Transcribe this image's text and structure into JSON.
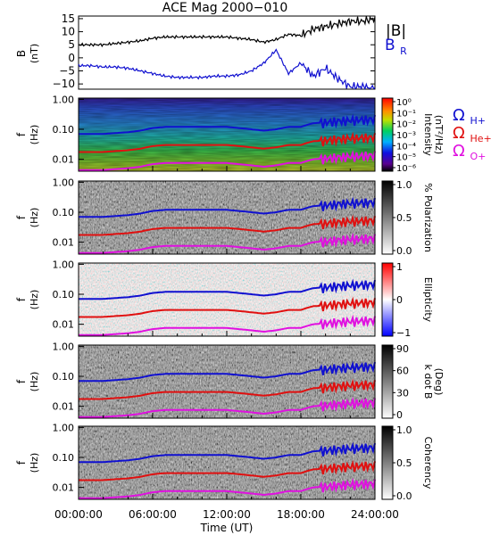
{
  "chart_data": [
    {
      "type": "line",
      "title": "ACE Mag 2000−010",
      "ylabel": "B",
      "yunit": "(nT)",
      "xlim": [
        0,
        24
      ],
      "ylim": [
        -12,
        16
      ],
      "yticks": [
        "15",
        "10",
        "5",
        "0",
        "−5",
        "−10"
      ],
      "ytick_values": [
        15,
        10,
        5,
        0,
        -5,
        -10
      ],
      "series": [
        {
          "name": "|B|",
          "color": "#000000",
          "x": [
            0,
            1,
            2,
            3,
            4,
            5,
            6,
            7,
            8,
            9,
            10,
            11,
            12,
            13,
            14,
            15,
            16,
            17,
            18,
            19,
            20,
            21,
            22,
            23,
            24
          ],
          "values": [
            5,
            5,
            5,
            5.5,
            6,
            6.5,
            7.5,
            8,
            8,
            8,
            8,
            8,
            8,
            7.5,
            7,
            6,
            7,
            9,
            8.5,
            11,
            12,
            13,
            14,
            14,
            15
          ]
        },
        {
          "name": "B",
          "name_sub": "R",
          "color": "#1010d0",
          "x": [
            0,
            1,
            2,
            3,
            4,
            5,
            6,
            7,
            8,
            9,
            10,
            11,
            12,
            13,
            14,
            15,
            16,
            17,
            18,
            19,
            20,
            21,
            22,
            23,
            24
          ],
          "values": [
            -3,
            -3,
            -3.5,
            -3.5,
            -4,
            -5,
            -6,
            -7,
            -7.5,
            -7.5,
            -7.5,
            -7,
            -7,
            -6.5,
            -5,
            -2,
            3,
            -6,
            -2,
            -7,
            -4,
            -8,
            -11,
            -11,
            -12
          ]
        }
      ]
    },
    {
      "type": "heatmap",
      "ylabel": "f",
      "yunit": "(Hz)",
      "yticks": [
        "1.00",
        "0.10",
        "0.01"
      ],
      "colorbar": {
        "label": "Intensity",
        "unit": "(nT²/Hz)",
        "ticks": [
          "10⁰",
          "10⁻¹",
          "10⁻²",
          "10⁻³",
          "10⁻⁴",
          "10⁻⁵",
          "10⁻⁶"
        ],
        "scale": "rainbow"
      },
      "legend": [
        {
          "symbol": "Ω",
          "sub": "H+",
          "color": "#1010d0"
        },
        {
          "symbol": "Ω",
          "sub": "He+",
          "color": "#e01010"
        },
        {
          "symbol": "Ω",
          "sub": "O+",
          "color": "#e010e0"
        }
      ]
    },
    {
      "type": "heatmap",
      "ylabel": "f",
      "yunit": "(Hz)",
      "yticks": [
        "1.00",
        "0.10",
        "0.01"
      ],
      "colorbar": {
        "label": "% Polarization",
        "ticks": [
          "1.0",
          "0.5",
          "0.0"
        ],
        "scale": "gray"
      }
    },
    {
      "type": "heatmap",
      "ylabel": "f",
      "yunit": "(Hz)",
      "yticks": [
        "1.00",
        "0.10",
        "0.01"
      ],
      "colorbar": {
        "label": "Ellipticity",
        "ticks": [
          "1",
          "0",
          "−1"
        ],
        "scale": "bwr"
      }
    },
    {
      "type": "heatmap",
      "ylabel": "f",
      "yunit": "(Hz)",
      "yticks": [
        "1.00",
        "0.10",
        "0.01"
      ],
      "colorbar": {
        "label": "k dot B",
        "unit": "(Deg)",
        "ticks": [
          "90",
          "60",
          "30",
          "0"
        ],
        "scale": "gray"
      }
    },
    {
      "type": "heatmap",
      "ylabel": "f",
      "yunit": "(Hz)",
      "yticks": [
        "1.00",
        "0.10",
        "0.01"
      ],
      "colorbar": {
        "label": "Coherency",
        "ticks": [
          "1.0",
          "0.5",
          "0.0"
        ],
        "scale": "gray"
      }
    }
  ],
  "gyrofrequency": {
    "x": [
      0,
      1,
      2,
      3,
      4,
      5,
      6,
      7,
      8,
      9,
      10,
      11,
      12,
      13,
      14,
      15,
      16,
      17,
      18,
      19,
      20,
      21,
      22,
      23,
      24
    ],
    "H_plus_hz": [
      0.07,
      0.07,
      0.07,
      0.075,
      0.08,
      0.09,
      0.11,
      0.12,
      0.12,
      0.12,
      0.12,
      0.12,
      0.12,
      0.11,
      0.1,
      0.09,
      0.1,
      0.12,
      0.12,
      0.16,
      0.17,
      0.19,
      0.2,
      0.21,
      0.22
    ]
  },
  "xaxis": {
    "label": "Time (UT)",
    "ticks": [
      "00:00:00",
      "06:00:00",
      "12:00:00",
      "18:00:00",
      "24:00:00"
    ],
    "tick_hours": [
      0,
      6,
      12,
      18,
      24
    ]
  }
}
